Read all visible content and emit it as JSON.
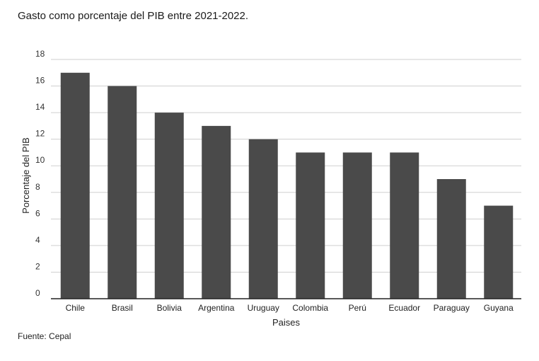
{
  "title": "Gasto como porcentaje del PIB entre 2021-2022.",
  "source": "Fuente: Cepal",
  "colors": {
    "bar": "#4a4a4a",
    "grid": "#cfcfcf",
    "axis": "#222222"
  },
  "chart_data": {
    "type": "bar",
    "title": "Gasto como porcentaje del PIB entre 2021-2022.",
    "xlabel": "Paises",
    "ylabel": "Porcentaje del PIB",
    "categories": [
      "Chile",
      "Brasil",
      "Bolivia",
      "Argentina",
      "Uruguay",
      "Colombia",
      "Perú",
      "Ecuador",
      "Paraguay",
      "Guyana"
    ],
    "values": [
      17,
      16,
      14,
      13,
      12,
      11,
      11,
      11,
      9,
      7
    ],
    "ylim": [
      0,
      18
    ],
    "yticks": [
      0,
      2,
      4,
      6,
      8,
      10,
      12,
      14,
      16,
      18
    ],
    "grid": true,
    "legend": "none"
  }
}
